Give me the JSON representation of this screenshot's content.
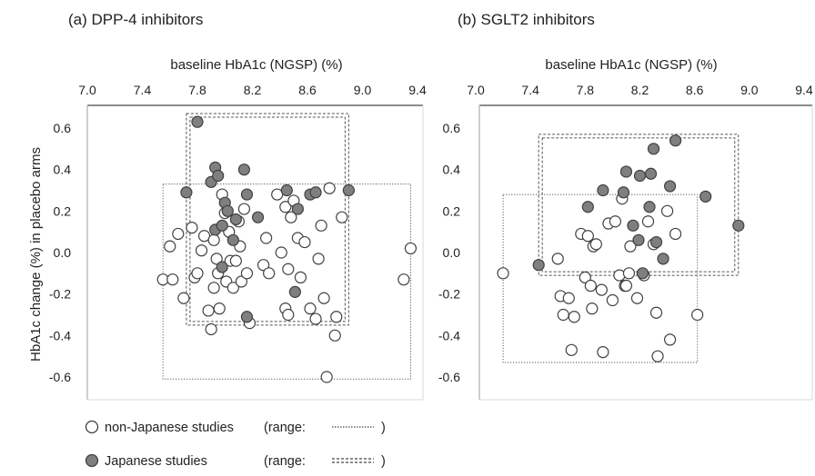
{
  "y_axis_label": "HbA1c change (%) in placebo arms",
  "legend": {
    "items": [
      {
        "label": "non-Japanese studies",
        "range_text": "(range:",
        "close": ")",
        "fill": "#ffffff",
        "line": "dotted"
      },
      {
        "label": "Japanese studies",
        "range_text": "(range:",
        "close": ")",
        "fill": "#7f7f7f",
        "line": "double-dashed"
      }
    ]
  },
  "colors": {
    "marker_stroke": "#404040",
    "japanese_fill": "#7f7f7f",
    "nonjapanese_fill": "#ffffff",
    "axis": "#999999"
  },
  "chart_data": [
    {
      "type": "scatter",
      "title": "(a) DPP-4 inhibitors",
      "xlabel": "baseline HbA1c (NGSP) (%)",
      "ylabel": "HbA1c change (%) in placebo arms",
      "xlim": [
        7.0,
        9.4
      ],
      "ylim": [
        -0.7,
        0.7
      ],
      "xticks": [
        "7.0",
        "7.4",
        "7.8",
        "8.2",
        "8.6",
        "9.0",
        "9.4"
      ],
      "yticks": [
        "0.6",
        "0.4",
        "0.2",
        "0.0",
        "-0.2",
        "-0.4",
        "-0.6"
      ],
      "x_axis_position": "top",
      "series": [
        {
          "name": "non-Japanese studies",
          "points": [
            [
              7.55,
              -0.13
            ],
            [
              7.6,
              0.03
            ],
            [
              7.62,
              -0.13
            ],
            [
              7.66,
              0.09
            ],
            [
              7.7,
              -0.22
            ],
            [
              7.76,
              0.12
            ],
            [
              7.78,
              -0.12
            ],
            [
              7.8,
              -0.1
            ],
            [
              7.83,
              0.01
            ],
            [
              7.85,
              0.08
            ],
            [
              7.88,
              -0.28
            ],
            [
              7.9,
              -0.37
            ],
            [
              7.92,
              0.06
            ],
            [
              7.92,
              -0.17
            ],
            [
              7.94,
              -0.03
            ],
            [
              7.95,
              -0.1
            ],
            [
              7.96,
              -0.27
            ],
            [
              7.98,
              0.28
            ],
            [
              8.0,
              0.19
            ],
            [
              8.01,
              -0.14
            ],
            [
              8.03,
              0.1
            ],
            [
              8.04,
              -0.04
            ],
            [
              8.06,
              -0.17
            ],
            [
              8.08,
              -0.04
            ],
            [
              8.1,
              0.15
            ],
            [
              8.11,
              0.03
            ],
            [
              8.12,
              -0.14
            ],
            [
              8.14,
              0.21
            ],
            [
              8.16,
              -0.1
            ],
            [
              8.18,
              -0.34
            ],
            [
              8.28,
              -0.06
            ],
            [
              8.3,
              0.07
            ],
            [
              8.32,
              -0.1
            ],
            [
              8.38,
              0.28
            ],
            [
              8.41,
              0.0
            ],
            [
              8.44,
              0.22
            ],
            [
              8.46,
              -0.08
            ],
            [
              8.44,
              -0.27
            ],
            [
              8.46,
              -0.3
            ],
            [
              8.48,
              0.17
            ],
            [
              8.5,
              0.25
            ],
            [
              8.53,
              0.07
            ],
            [
              8.55,
              -0.12
            ],
            [
              8.58,
              0.05
            ],
            [
              8.62,
              -0.27
            ],
            [
              8.66,
              -0.32
            ],
            [
              8.68,
              -0.03
            ],
            [
              8.7,
              0.13
            ],
            [
              8.72,
              -0.22
            ],
            [
              8.74,
              -0.6
            ],
            [
              8.76,
              0.31
            ],
            [
              8.8,
              -0.4
            ],
            [
              8.81,
              -0.31
            ],
            [
              8.85,
              0.17
            ],
            [
              9.3,
              -0.13
            ],
            [
              9.35,
              0.02
            ]
          ]
        },
        {
          "name": "Japanese studies",
          "points": [
            [
              7.72,
              0.29
            ],
            [
              7.8,
              0.63
            ],
            [
              7.9,
              0.34
            ],
            [
              7.93,
              0.41
            ],
            [
              7.95,
              0.37
            ],
            [
              7.93,
              0.11
            ],
            [
              7.98,
              0.13
            ],
            [
              7.98,
              -0.07
            ],
            [
              8.0,
              0.24
            ],
            [
              8.02,
              0.2
            ],
            [
              8.06,
              0.06
            ],
            [
              8.08,
              0.16
            ],
            [
              8.14,
              0.4
            ],
            [
              8.16,
              0.28
            ],
            [
              8.16,
              -0.31
            ],
            [
              8.24,
              0.17
            ],
            [
              8.45,
              0.3
            ],
            [
              8.51,
              -0.19
            ],
            [
              8.53,
              0.21
            ],
            [
              8.62,
              0.28
            ],
            [
              8.66,
              0.29
            ],
            [
              8.9,
              0.3
            ]
          ]
        }
      ],
      "ranges": [
        {
          "series": "non-Japanese studies",
          "x": [
            7.55,
            9.35
          ],
          "y": [
            -0.61,
            0.33
          ]
        },
        {
          "series": "Japanese studies",
          "x": [
            7.72,
            8.9
          ],
          "y": [
            -0.35,
            0.67
          ]
        }
      ]
    },
    {
      "type": "scatter",
      "title": "(b) SGLT2 inhibitors",
      "xlabel": "baseline HbA1c (NGSP) (%)",
      "ylabel": "",
      "xlim": [
        7.0,
        9.4
      ],
      "ylim": [
        -0.7,
        0.7
      ],
      "xticks": [
        "7.0",
        "7.4",
        "7.8",
        "8.2",
        "8.6",
        "9.0",
        "9.4"
      ],
      "yticks": [
        "0.6",
        "0.4",
        "0.2",
        "0.0",
        "-0.2",
        "-0.4",
        "-0.6"
      ],
      "x_axis_position": "top",
      "series": [
        {
          "name": "non-Japanese studies",
          "points": [
            [
              7.2,
              -0.1
            ],
            [
              7.6,
              -0.03
            ],
            [
              7.62,
              -0.21
            ],
            [
              7.64,
              -0.3
            ],
            [
              7.68,
              -0.22
            ],
            [
              7.7,
              -0.47
            ],
            [
              7.72,
              -0.31
            ],
            [
              7.77,
              0.09
            ],
            [
              7.8,
              -0.12
            ],
            [
              7.82,
              0.08
            ],
            [
              7.84,
              -0.16
            ],
            [
              7.85,
              -0.27
            ],
            [
              7.86,
              0.03
            ],
            [
              7.88,
              0.04
            ],
            [
              7.92,
              -0.18
            ],
            [
              7.93,
              -0.48
            ],
            [
              7.97,
              0.14
            ],
            [
              8.0,
              -0.23
            ],
            [
              8.02,
              0.15
            ],
            [
              8.05,
              -0.11
            ],
            [
              8.07,
              0.26
            ],
            [
              8.09,
              -0.16
            ],
            [
              8.1,
              -0.16
            ],
            [
              8.12,
              -0.1
            ],
            [
              8.13,
              0.03
            ],
            [
              8.18,
              -0.22
            ],
            [
              8.23,
              -0.11
            ],
            [
              8.26,
              0.15
            ],
            [
              8.3,
              0.04
            ],
            [
              8.32,
              -0.29
            ],
            [
              8.33,
              -0.5
            ],
            [
              8.4,
              0.2
            ],
            [
              8.42,
              -0.42
            ],
            [
              8.46,
              0.09
            ],
            [
              8.62,
              -0.3
            ]
          ]
        },
        {
          "name": "Japanese studies",
          "points": [
            [
              7.46,
              -0.06
            ],
            [
              7.82,
              0.22
            ],
            [
              7.93,
              0.3
            ],
            [
              8.08,
              0.29
            ],
            [
              8.1,
              0.39
            ],
            [
              8.15,
              0.13
            ],
            [
              8.19,
              0.06
            ],
            [
              8.2,
              0.37
            ],
            [
              8.22,
              -0.1
            ],
            [
              8.27,
              0.22
            ],
            [
              8.28,
              0.38
            ],
            [
              8.3,
              0.5
            ],
            [
              8.32,
              0.05
            ],
            [
              8.37,
              -0.03
            ],
            [
              8.42,
              0.32
            ],
            [
              8.46,
              0.54
            ],
            [
              8.68,
              0.27
            ],
            [
              8.92,
              0.13
            ]
          ]
        }
      ],
      "ranges": [
        {
          "series": "non-Japanese studies",
          "x": [
            7.2,
            8.62
          ],
          "y": [
            -0.53,
            0.28
          ]
        },
        {
          "series": "Japanese studies",
          "x": [
            7.46,
            8.92
          ],
          "y": [
            -0.11,
            0.57
          ]
        }
      ]
    }
  ]
}
